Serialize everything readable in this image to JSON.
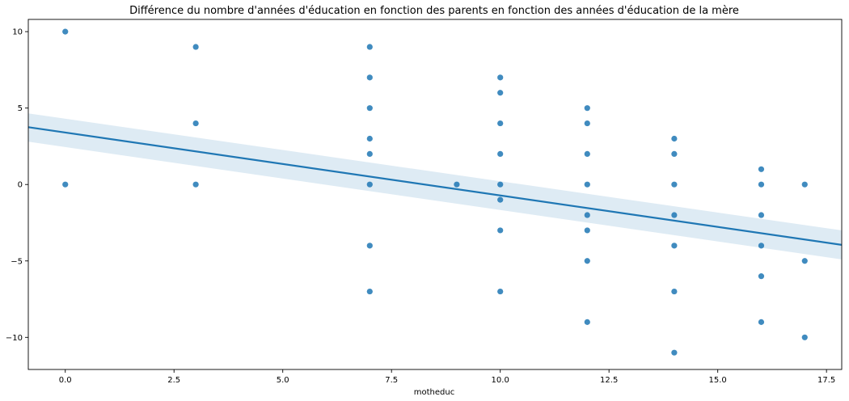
{
  "chart_data": {
    "type": "scatter",
    "title": "Différence du nombre d'années d'éducation en fonction des parents en fonction des années d'éducation de la mère",
    "xlabel": "motheduc",
    "ylabel": "",
    "xlim": [
      -0.85,
      17.85
    ],
    "ylim": [
      -12.1,
      10.8
    ],
    "xticks": [
      0.0,
      2.5,
      5.0,
      7.5,
      10.0,
      12.5,
      15.0,
      17.5
    ],
    "xtick_labels": [
      "0.0",
      "2.5",
      "5.0",
      "7.5",
      "10.0",
      "12.5",
      "15.0",
      "17.5"
    ],
    "yticks": [
      10,
      5,
      0,
      -5,
      -10
    ],
    "ytick_labels": [
      "10",
      "5",
      "0",
      "−5",
      "−10"
    ],
    "grid": false,
    "colors": {
      "points": "#1f77b4",
      "line": "#1f77b4",
      "band": "#1f77b4",
      "axis": "#000000"
    },
    "points": [
      [
        0,
        10
      ],
      [
        0,
        0
      ],
      [
        3,
        9
      ],
      [
        3,
        4
      ],
      [
        3,
        0
      ],
      [
        7,
        9
      ],
      [
        7,
        7
      ],
      [
        7,
        5
      ],
      [
        7,
        3
      ],
      [
        7,
        2
      ],
      [
        7,
        0
      ],
      [
        7,
        -4
      ],
      [
        7,
        -7
      ],
      [
        9,
        0
      ],
      [
        10,
        7
      ],
      [
        10,
        6
      ],
      [
        10,
        4
      ],
      [
        10,
        2
      ],
      [
        10,
        0
      ],
      [
        10,
        -1
      ],
      [
        10,
        -3
      ],
      [
        10,
        -7
      ],
      [
        12,
        5
      ],
      [
        12,
        4
      ],
      [
        12,
        2
      ],
      [
        12,
        0
      ],
      [
        12,
        -2
      ],
      [
        12,
        -3
      ],
      [
        12,
        -5
      ],
      [
        12,
        -9
      ],
      [
        14,
        3
      ],
      [
        14,
        2
      ],
      [
        14,
        0
      ],
      [
        14,
        -2
      ],
      [
        14,
        -4
      ],
      [
        14,
        -7
      ],
      [
        14,
        -11
      ],
      [
        16,
        1
      ],
      [
        16,
        0
      ],
      [
        16,
        -2
      ],
      [
        16,
        -4
      ],
      [
        16,
        -6
      ],
      [
        16,
        -9
      ],
      [
        17,
        0
      ],
      [
        17,
        -5
      ],
      [
        17,
        -10
      ]
    ],
    "regression": {
      "x": [
        -0.85,
        17.85
      ],
      "y": [
        3.75,
        -3.95
      ],
      "ci_lower": [
        2.8,
        -4.9
      ],
      "ci_upper": [
        4.65,
        -3.0
      ]
    }
  }
}
